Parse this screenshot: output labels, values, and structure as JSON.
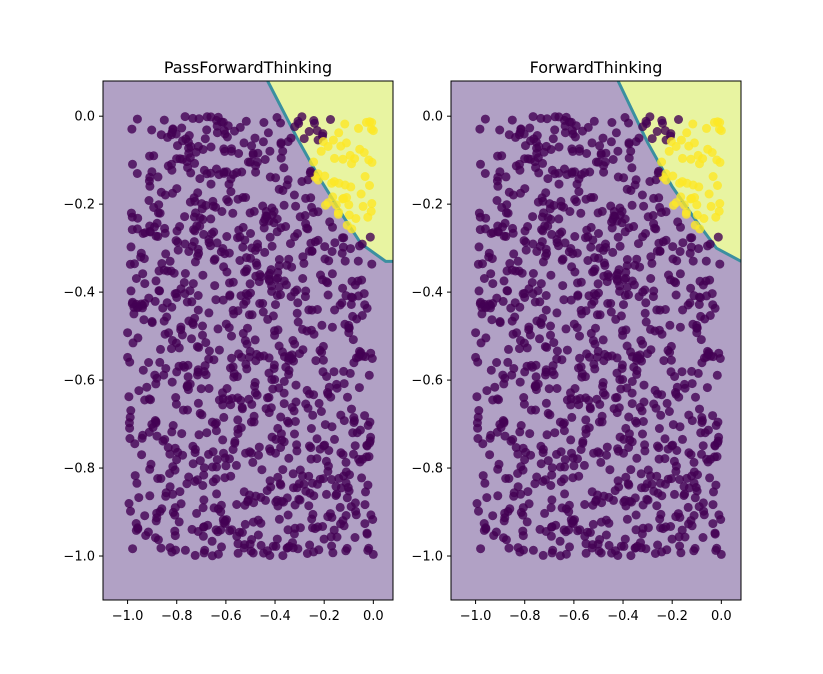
{
  "chart_data": [
    {
      "type": "scatter",
      "title": "PassForwardThinking",
      "xlabel": "",
      "ylabel": "",
      "xlim": [
        -1.1,
        0.08
      ],
      "ylim": [
        -1.1,
        0.08
      ],
      "xticks": [
        -1.0,
        -0.8,
        -0.6,
        -0.4,
        -0.2,
        0.0
      ],
      "xtick_labels": [
        "−1.0",
        "−0.8",
        "−0.6",
        "−0.4",
        "−0.2",
        "0.0"
      ],
      "yticks": [
        0.0,
        -0.2,
        -0.4,
        -0.6,
        -0.8,
        -1.0
      ],
      "ytick_labels": [
        "0.0",
        "−0.2",
        "−0.4",
        "−0.6",
        "−0.8",
        "−1.0"
      ],
      "grid": false,
      "legend": "none",
      "decision_boundary": [
        [
          -0.43,
          0.08
        ],
        [
          -0.31,
          -0.05
        ],
        [
          -0.22,
          -0.14
        ],
        [
          -0.12,
          -0.23
        ],
        [
          -0.05,
          -0.29
        ],
        [
          0.05,
          -0.33
        ],
        [
          0.08,
          -0.33
        ]
      ],
      "regions": {
        "class_0_color": "#b1a1c5",
        "class_1_color": "#e8f4a1",
        "boundary_color": "#3b8fa0"
      },
      "points": {
        "description_counts": {
          "class_0": 1000,
          "class_1": 45
        },
        "x_range": [
          -1.0,
          0.0
        ],
        "y_range": [
          -1.0,
          0.0
        ],
        "class_0_color": "#440154",
        "class_1_color": "#fde725",
        "alpha": 0.8
      }
    },
    {
      "type": "scatter",
      "title": "ForwardThinking",
      "xlabel": "",
      "ylabel": "",
      "xlim": [
        -1.1,
        0.08
      ],
      "ylim": [
        -1.1,
        0.08
      ],
      "xticks": [
        -1.0,
        -0.8,
        -0.6,
        -0.4,
        -0.2,
        0.0
      ],
      "xtick_labels": [
        "−1.0",
        "−0.8",
        "−0.6",
        "−0.4",
        "−0.2",
        "0.0"
      ],
      "yticks": [
        0.0,
        -0.2,
        -0.4,
        -0.6,
        -0.8,
        -1.0
      ],
      "ytick_labels": [
        "0.0",
        "−0.2",
        "−0.4",
        "−0.6",
        "−0.8",
        "−1.0"
      ],
      "grid": false,
      "legend": "none",
      "decision_boundary": [
        [
          -0.42,
          0.08
        ],
        [
          -0.3,
          -0.06
        ],
        [
          -0.2,
          -0.16
        ],
        [
          -0.1,
          -0.24
        ],
        [
          -0.02,
          -0.3
        ],
        [
          0.08,
          -0.33
        ]
      ],
      "regions": {
        "class_0_color": "#b1a1c5",
        "class_1_color": "#e8f4a1",
        "boundary_color": "#3b8fa0"
      },
      "points": {
        "description_counts": {
          "class_0": 1000,
          "class_1": 45
        },
        "x_range": [
          -1.0,
          0.0
        ],
        "y_range": [
          -1.0,
          0.0
        ],
        "class_0_color": "#440154",
        "class_1_color": "#fde725",
        "alpha": 0.8
      }
    }
  ]
}
